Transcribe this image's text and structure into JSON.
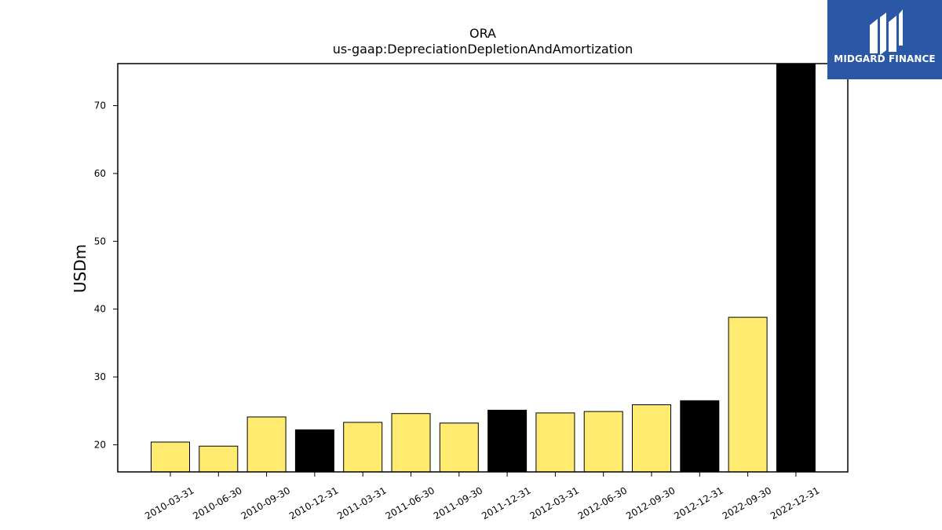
{
  "chart_data": {
    "type": "bar",
    "title": "ORA",
    "subtitle": "us-gaap:DepreciationDepletionAndAmortization",
    "xlabel": "",
    "ylabel": "USDm",
    "ylim": [
      16,
      76.2
    ],
    "yticks": [
      20,
      30,
      40,
      50,
      60,
      70
    ],
    "grid": false,
    "categories": [
      "2010-03-31",
      "2010-06-30",
      "2010-09-30",
      "2010-12-31",
      "2011-03-31",
      "2011-06-30",
      "2011-09-30",
      "2011-12-31",
      "2012-03-31",
      "2012-06-30",
      "2012-09-30",
      "2012-12-31",
      "2022-09-30",
      "2022-12-31"
    ],
    "values": [
      20.4,
      19.8,
      24.1,
      22.2,
      23.3,
      24.6,
      23.2,
      25.1,
      24.7,
      24.9,
      25.9,
      26.5,
      38.8,
      76.2
    ],
    "colors": [
      "#ffeb70",
      "#ffeb70",
      "#ffeb70",
      "#000000",
      "#ffeb70",
      "#ffeb70",
      "#ffeb70",
      "#000000",
      "#ffeb70",
      "#ffeb70",
      "#ffeb70",
      "#000000",
      "#ffeb70",
      "#000000"
    ]
  },
  "logo": {
    "text": "MIDGARD FINANCE",
    "color": "#2b57a7"
  }
}
